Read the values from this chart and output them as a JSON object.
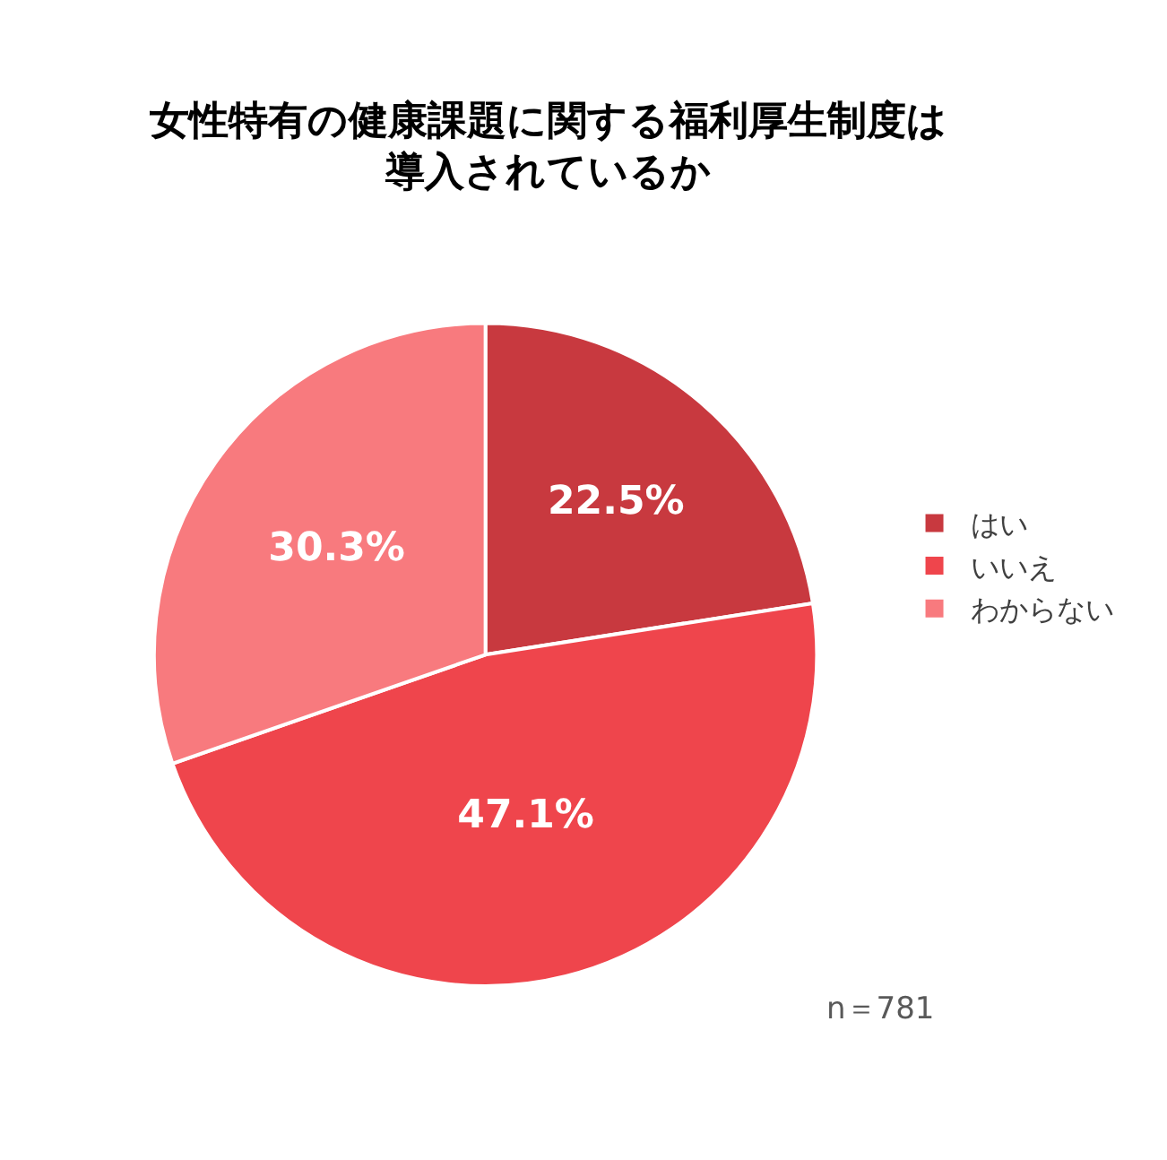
{
  "chart_data": {
    "type": "pie",
    "title": "女性特有の健康課題に関する福利厚生制度は導入されているか",
    "categories": [
      "はい",
      "いいえ",
      "わからない"
    ],
    "values": [
      22.5,
      47.1,
      30.3
    ],
    "colors": [
      "#c8393f",
      "#ef454c",
      "#f87a7e"
    ],
    "value_labels": [
      "22.5%",
      "47.1%",
      "30.3%"
    ],
    "legend": "right",
    "annotations": [
      "n＝781"
    ]
  }
}
